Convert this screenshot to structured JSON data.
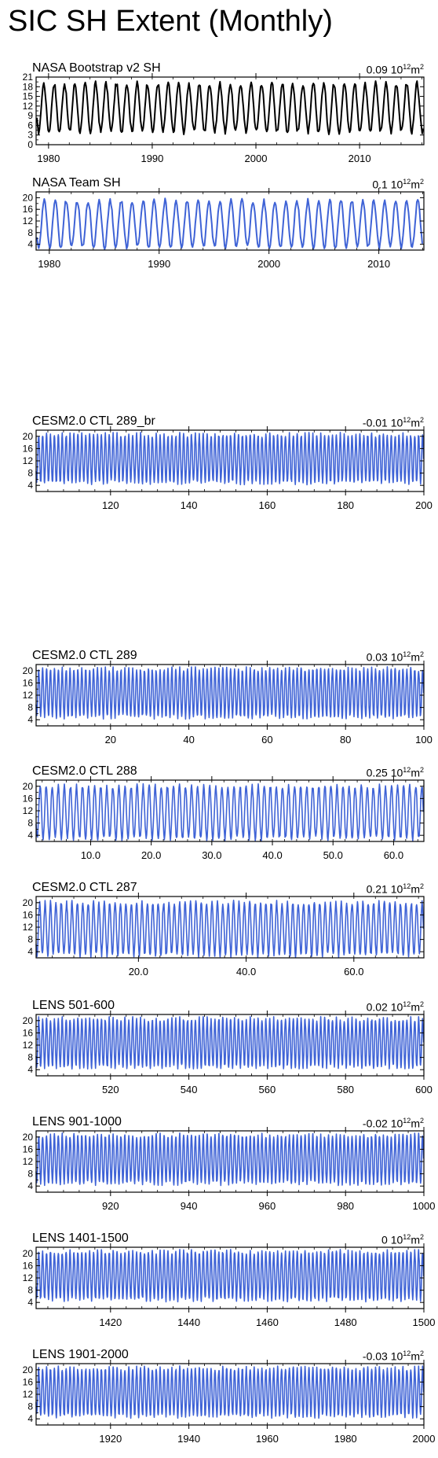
{
  "title": "SIC SH Extent (Monthly)",
  "trend_unit": {
    "base": "10",
    "exp": "12",
    "unit": "m",
    "unit_exp": "2"
  },
  "chart_data": [
    {
      "type": "line",
      "title": "NASA Bootstrap v2 SH",
      "trend": "0.09",
      "color": "#000000",
      "xlim": [
        1978.8,
        2016.2
      ],
      "ylim": [
        0,
        21
      ],
      "yticks": [
        0,
        3,
        6,
        9,
        12,
        15,
        18,
        21
      ],
      "ytick_labels": [
        "0",
        "3",
        "6",
        "9",
        "12",
        "15",
        "18",
        "21"
      ],
      "xticks": [
        1980,
        1990,
        2000,
        2010
      ],
      "xtick_labels": [
        "1980",
        "1990",
        "2000",
        "2010"
      ],
      "series": [
        {
          "x_start": 1978.875,
          "x_step": 0.08333,
          "n": 448,
          "min": 4,
          "max": 19
        }
      ]
    },
    {
      "type": "line",
      "title": "NASA Team SH",
      "trend": "0.1",
      "color": "#3f63d6",
      "xlim": [
        1978.8,
        2014.1
      ],
      "ylim": [
        2,
        22
      ],
      "yticks": [
        4,
        8,
        12,
        16,
        20
      ],
      "ytick_labels": [
        "4",
        "8",
        "12",
        "16",
        "20"
      ],
      "xticks": [
        1980,
        1990,
        2000,
        2010
      ],
      "xtick_labels": [
        "1980",
        "1990",
        "2000",
        "2010"
      ],
      "series": [
        {
          "x_start": 1978.875,
          "x_step": 0.08333,
          "n": 422,
          "min": 3,
          "max": 19
        }
      ]
    },
    {
      "type": "line",
      "title": "CESM2.0 CTL 289_br",
      "trend": "-0.01",
      "color": "#3f63d6",
      "xlim": [
        101,
        200
      ],
      "ylim": [
        2,
        22
      ],
      "yticks": [
        4,
        8,
        12,
        16,
        20
      ],
      "ytick_labels": [
        "4",
        "8",
        "12",
        "16",
        "20"
      ],
      "xticks": [
        120,
        140,
        160,
        180,
        200
      ],
      "xtick_labels": [
        "120",
        "140",
        "160",
        "180",
        "200"
      ],
      "series": [
        {
          "x_start": 101,
          "x_step": 0.08333,
          "n": 1188,
          "min": 5,
          "max": 20.5
        }
      ]
    },
    {
      "type": "line",
      "title": "CESM2.0 CTL 289",
      "trend": "0.03",
      "color": "#3f63d6",
      "xlim": [
        1,
        100
      ],
      "ylim": [
        2,
        22
      ],
      "yticks": [
        4,
        8,
        12,
        16,
        20
      ],
      "ytick_labels": [
        "4",
        "8",
        "12",
        "16",
        "20"
      ],
      "xticks": [
        20,
        40,
        60,
        80,
        100
      ],
      "xtick_labels": [
        "20",
        "40",
        "60",
        "80",
        "100"
      ],
      "series": [
        {
          "x_start": 1,
          "x_step": 0.08333,
          "n": 1188,
          "min": 5,
          "max": 20.5
        }
      ]
    },
    {
      "type": "line",
      "title": "CESM2.0 CTL 288",
      "trend": "0.25",
      "color": "#3f63d6",
      "xlim": [
        1,
        65
      ],
      "ylim": [
        2,
        22
      ],
      "yticks": [
        4,
        8,
        12,
        16,
        20
      ],
      "ytick_labels": [
        "4",
        "8",
        "12",
        "16",
        "20"
      ],
      "xticks": [
        10,
        20,
        30,
        40,
        50,
        60
      ],
      "xtick_labels": [
        "10.0",
        "20.0",
        "30.0",
        "40.0",
        "50.0",
        "60.0"
      ],
      "series": [
        {
          "x_start": 1,
          "x_step": 0.08333,
          "n": 768,
          "min": 3,
          "max": 20
        }
      ]
    },
    {
      "type": "line",
      "title": "CESM2.0 CTL 287",
      "trend": "0.21",
      "color": "#3f63d6",
      "xlim": [
        1,
        73
      ],
      "ylim": [
        2,
        22
      ],
      "yticks": [
        4,
        8,
        12,
        16,
        20
      ],
      "ytick_labels": [
        "4",
        "8",
        "12",
        "16",
        "20"
      ],
      "xticks": [
        20,
        40,
        60
      ],
      "xtick_labels": [
        "20.0",
        "40.0",
        "60.0"
      ],
      "series": [
        {
          "x_start": 1,
          "x_step": 0.08333,
          "n": 864,
          "min": 3,
          "max": 20
        }
      ]
    },
    {
      "type": "line",
      "title": "LENS 501-600",
      "trend": "0.02",
      "color": "#3f63d6",
      "xlim": [
        501,
        600
      ],
      "ylim": [
        2,
        22
      ],
      "yticks": [
        4,
        8,
        12,
        16,
        20
      ],
      "ytick_labels": [
        "4",
        "8",
        "12",
        "16",
        "20"
      ],
      "xticks": [
        520,
        540,
        560,
        580,
        600
      ],
      "xtick_labels": [
        "520",
        "540",
        "560",
        "580",
        "600"
      ],
      "series": [
        {
          "x_start": 501,
          "x_step": 0.08333,
          "n": 1188,
          "min": 5,
          "max": 20.5
        }
      ]
    },
    {
      "type": "line",
      "title": "LENS 901-1000",
      "trend": "-0.02",
      "color": "#3f63d6",
      "xlim": [
        901,
        1000
      ],
      "ylim": [
        2,
        22
      ],
      "yticks": [
        4,
        8,
        12,
        16,
        20
      ],
      "ytick_labels": [
        "4",
        "8",
        "12",
        "16",
        "20"
      ],
      "xticks": [
        920,
        940,
        960,
        980,
        1000
      ],
      "xtick_labels": [
        "920",
        "940",
        "960",
        "980",
        "1000"
      ],
      "series": [
        {
          "x_start": 901,
          "x_step": 0.08333,
          "n": 1188,
          "min": 5,
          "max": 20.5
        }
      ]
    },
    {
      "type": "line",
      "title": "LENS 1401-1500",
      "trend": "0",
      "color": "#3f63d6",
      "xlim": [
        1401,
        1500
      ],
      "ylim": [
        2,
        22
      ],
      "yticks": [
        4,
        8,
        12,
        16,
        20
      ],
      "ytick_labels": [
        "4",
        "8",
        "12",
        "16",
        "20"
      ],
      "xticks": [
        1420,
        1440,
        1460,
        1480,
        1500
      ],
      "xtick_labels": [
        "1420",
        "1440",
        "1460",
        "1480",
        "1500"
      ],
      "series": [
        {
          "x_start": 1401,
          "x_step": 0.08333,
          "n": 1188,
          "min": 5,
          "max": 20.5
        }
      ]
    },
    {
      "type": "line",
      "title": "LENS 1901-2000",
      "trend": "-0.03",
      "color": "#3f63d6",
      "xlim": [
        1901,
        2000
      ],
      "ylim": [
        2,
        22
      ],
      "yticks": [
        4,
        8,
        12,
        16,
        20
      ],
      "ytick_labels": [
        "4",
        "8",
        "12",
        "16",
        "20"
      ],
      "xticks": [
        1920,
        1940,
        1960,
        1980,
        2000
      ],
      "xtick_labels": [
        "1920",
        "1940",
        "1960",
        "1980",
        "2000"
      ],
      "series": [
        {
          "x_start": 1901,
          "x_step": 0.08333,
          "n": 1188,
          "min": 5,
          "max": 20.5
        }
      ]
    }
  ]
}
